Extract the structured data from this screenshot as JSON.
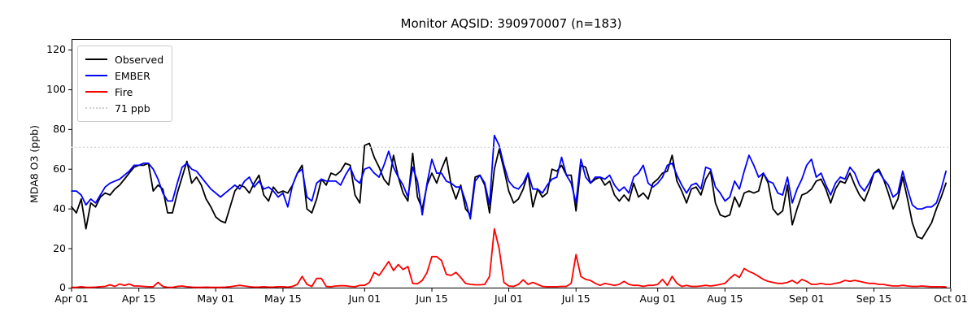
{
  "chart_data": {
    "type": "line",
    "title": "Monitor AQSID: 390970007 (n=183)",
    "xlabel": "",
    "ylabel": "MDA8 O3 (ppb)",
    "n_points": 183,
    "x_start": "Apr 01",
    "x_end": "Oct 01",
    "x_tick_labels": [
      "Apr 01",
      "Apr 15",
      "May 01",
      "May 15",
      "Jun 01",
      "Jun 15",
      "Jul 01",
      "Jul 15",
      "Aug 01",
      "Aug 15",
      "Sep 01",
      "Sep 15",
      "Oct 01"
    ],
    "x_tick_days": [
      0,
      14,
      30,
      44,
      61,
      75,
      91,
      105,
      122,
      136,
      153,
      167,
      183
    ],
    "y_ticks": [
      0,
      20,
      40,
      60,
      80,
      100,
      120
    ],
    "ylim": [
      0,
      125.6
    ],
    "grid": false,
    "legend_position": "upper left",
    "threshold": {
      "label": "71 ppb",
      "value": 71,
      "color": "#cfcfcf",
      "style": "dotted"
    },
    "series": [
      {
        "name": "Observed",
        "color": "#000000",
        "style": "solid",
        "values": [
          41,
          38,
          45,
          30,
          43,
          41,
          46,
          48,
          47,
          50,
          52,
          55,
          58,
          61,
          62,
          62,
          63,
          49,
          52,
          50,
          38,
          38,
          48,
          56,
          64,
          53,
          56,
          52,
          45,
          41,
          36,
          34,
          33,
          41,
          49,
          52,
          51,
          48,
          53,
          57,
          47,
          44,
          51,
          48,
          49,
          48,
          52,
          58,
          62,
          40,
          38,
          45,
          55,
          52,
          58,
          57,
          59,
          63,
          62,
          47,
          43,
          72,
          73,
          66,
          61,
          55,
          52,
          67,
          56,
          48,
          44,
          68,
          46,
          40,
          52,
          58,
          53,
          60,
          66,
          52,
          45,
          52,
          40,
          37,
          56,
          57,
          52,
          38,
          60,
          70,
          60,
          49,
          43,
          45,
          50,
          58,
          41,
          50,
          46,
          48,
          60,
          59,
          62,
          57,
          57,
          39,
          62,
          61,
          53,
          55,
          56,
          52,
          54,
          47,
          44,
          47,
          44,
          53,
          46,
          48,
          45,
          53,
          55,
          58,
          59,
          67,
          54,
          49,
          43,
          50,
          51,
          47,
          55,
          59,
          43,
          37,
          36,
          37,
          46,
          41,
          48,
          49,
          48,
          49,
          58,
          53,
          40,
          37,
          39,
          52,
          32,
          40,
          47,
          48,
          50,
          54,
          55,
          50,
          43,
          50,
          54,
          53,
          58,
          52,
          47,
          44,
          50,
          58,
          60,
          55,
          48,
          40,
          45,
          56,
          45,
          33,
          26,
          25,
          29,
          33,
          40,
          46,
          53
        ]
      },
      {
        "name": "EMBER",
        "color": "#0000ff",
        "style": "solid",
        "values": [
          49,
          49,
          47,
          42,
          45,
          43,
          47,
          51,
          53,
          54,
          55,
          57,
          59,
          62,
          62,
          63,
          63,
          60,
          55,
          48,
          44,
          44,
          53,
          61,
          63,
          60,
          59,
          56,
          53,
          50,
          48,
          46,
          48,
          50,
          52,
          50,
          54,
          56,
          51,
          54,
          50,
          51,
          49,
          46,
          48,
          41,
          52,
          58,
          60,
          46,
          44,
          53,
          55,
          54,
          54,
          54,
          52,
          57,
          61,
          55,
          53,
          60,
          61,
          58,
          56,
          62,
          69,
          61,
          56,
          52,
          46,
          61,
          54,
          37,
          53,
          65,
          58,
          58,
          54,
          53,
          51,
          51,
          44,
          35,
          54,
          57,
          53,
          42,
          77,
          72,
          62,
          54,
          51,
          50,
          53,
          58,
          50,
          50,
          48,
          52,
          55,
          56,
          66,
          57,
          53,
          43,
          65,
          56,
          53,
          56,
          56,
          55,
          57,
          52,
          49,
          51,
          48,
          56,
          58,
          62,
          53,
          51,
          53,
          56,
          62,
          63,
          57,
          52,
          48,
          52,
          53,
          50,
          61,
          60,
          51,
          48,
          44,
          46,
          54,
          50,
          59,
          67,
          62,
          56,
          58,
          54,
          53,
          48,
          47,
          56,
          43,
          50,
          55,
          62,
          65,
          56,
          58,
          52,
          47,
          53,
          56,
          55,
          61,
          58,
          52,
          49,
          53,
          58,
          59,
          55,
          52,
          46,
          48,
          59,
          50,
          42,
          40,
          40,
          41,
          41,
          43,
          50,
          59
        ]
      },
      {
        "name": "Fire",
        "color": "#ff0000",
        "style": "solid",
        "values": [
          0.5,
          0.5,
          0.8,
          0.5,
          0.5,
          0.6,
          0.8,
          1,
          1.8,
          1,
          2.2,
          1.5,
          2.2,
          1.2,
          1.2,
          1,
          0.8,
          0.8,
          3,
          1,
          0.5,
          0.5,
          1,
          1.2,
          0.8,
          0.6,
          0.5,
          0.5,
          0.6,
          0.5,
          0.5,
          0.5,
          0.6,
          0.8,
          1.2,
          1.5,
          1.2,
          0.8,
          0.6,
          0.6,
          0.8,
          0.6,
          0.6,
          0.8,
          0.8,
          0.6,
          1,
          2,
          6,
          2,
          1,
          5,
          5,
          1,
          0.8,
          1.2,
          1.3,
          1.3,
          1,
          0.8,
          1.5,
          1.5,
          3,
          8,
          6.5,
          10,
          13.5,
          9,
          12,
          9.5,
          11,
          2.5,
          2.3,
          4,
          8,
          16,
          16,
          14,
          7,
          6.5,
          8,
          5.5,
          2.5,
          2,
          1.8,
          1.8,
          2,
          6,
          30,
          20,
          3,
          1.2,
          1,
          2,
          4.3,
          2,
          3,
          2,
          1,
          0.8,
          0.8,
          0.8,
          1,
          1,
          2.5,
          17,
          6,
          4.5,
          4,
          2.5,
          1.5,
          2.5,
          2,
          1.5,
          2,
          3.5,
          2,
          1.5,
          1.5,
          1,
          1.5,
          1.5,
          2,
          4.5,
          1.5,
          6,
          2.5,
          1,
          1.5,
          1,
          1,
          1.2,
          1.5,
          1.2,
          1.5,
          2,
          2.5,
          5,
          7,
          5.5,
          10,
          8.5,
          7.5,
          6,
          4.5,
          3.5,
          3,
          2.5,
          2.5,
          3,
          4,
          2.5,
          4.5,
          3.5,
          2,
          2,
          2.5,
          2,
          2,
          2.5,
          3,
          4,
          3.5,
          4,
          3.5,
          3,
          2.5,
          2.5,
          2,
          2,
          1.5,
          1.2,
          1.2,
          1.5,
          1.2,
          1,
          1,
          1.2,
          1,
          0.8,
          0.8,
          0.8,
          0.7
        ]
      }
    ]
  }
}
